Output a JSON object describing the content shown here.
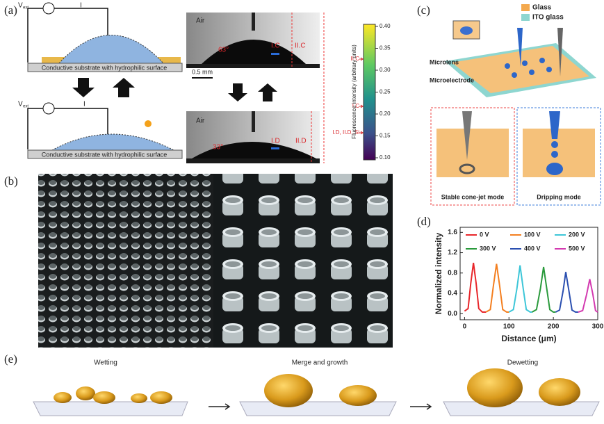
{
  "panel_labels": [
    "(a)",
    "(b)",
    "(c)",
    "(d)",
    "(e)"
  ],
  "panel_a": {
    "supply": "V",
    "supply_sub": "ext",
    "current": "I",
    "substrate": "Conductive substrate with hydrophilic surface",
    "medium": "Air",
    "angle_top": "63°",
    "angle_bottom": "33°",
    "marker_ic": "I.C",
    "marker_iic": "II.C",
    "marker_id": "I.D",
    "marker_iid": "II.D",
    "scale_bar": "0.5 mm",
    "colorbar": {
      "ticks": [
        "0.40",
        "0.35",
        "0.30",
        "0.25",
        "0.20",
        "0.15",
        "0.10"
      ],
      "title": "Fluorescence intensity (arbitrary units)",
      "annotations": [
        "II.C",
        "I.C",
        "I.D, II.D, Si"
      ]
    }
  },
  "panel_c": {
    "legend": [
      "Glass",
      "ITO glass"
    ],
    "labels": [
      "Microlens",
      "Microelectrode"
    ],
    "modes": [
      "Stable cone-jet mode",
      "Dripping mode"
    ]
  },
  "panel_e": {
    "stages": [
      "Wetting",
      "Merge and growth",
      "Dewetting"
    ]
  },
  "chart_data": {
    "type": "line",
    "xlabel": "Distance (μm)",
    "ylabel": "Normalized intensity",
    "xlim": [
      -10,
      300
    ],
    "ylim": [
      -0.12,
      1.7
    ],
    "xticks": [
      0,
      100,
      200,
      300
    ],
    "yticks": [
      {
        "value": 0,
        "label": "0.0"
      },
      0.4,
      0.8,
      1.2,
      1.6
    ],
    "series": [
      {
        "name": "0 V",
        "color": "#e8262a",
        "x": [
          0,
          8,
          14,
          20,
          26,
          32,
          40,
          48
        ],
        "values": [
          0.05,
          0.1,
          0.6,
          1.0,
          0.6,
          0.1,
          0.03,
          0.03
        ]
      },
      {
        "name": "100 V",
        "color": "#f47f20",
        "x": [
          48,
          58,
          65,
          72,
          79,
          86,
          95,
          100
        ],
        "values": [
          0.03,
          0.08,
          0.55,
          0.98,
          0.55,
          0.08,
          0.03,
          0.03
        ]
      },
      {
        "name": "200 V",
        "color": "#3dc6d8",
        "x": [
          100,
          110,
          118,
          125,
          132,
          139,
          148,
          152
        ],
        "values": [
          0.03,
          0.08,
          0.5,
          0.95,
          0.5,
          0.08,
          0.03,
          0.03
        ]
      },
      {
        "name": "300 V",
        "color": "#2a9a3c",
        "x": [
          152,
          162,
          171,
          178,
          185,
          192,
          200,
          205
        ],
        "values": [
          0.03,
          0.08,
          0.5,
          0.92,
          0.5,
          0.08,
          0.03,
          0.03
        ]
      },
      {
        "name": "400 V",
        "color": "#2a4fb0",
        "x": [
          205,
          214,
          222,
          228,
          235,
          242,
          250,
          256
        ],
        "values": [
          0.03,
          0.07,
          0.45,
          0.82,
          0.45,
          0.07,
          0.03,
          0.03
        ]
      },
      {
        "name": "500 V",
        "color": "#d33ab0",
        "x": [
          256,
          266,
          275,
          282,
          289,
          295,
          300
        ],
        "values": [
          0.03,
          0.06,
          0.38,
          0.68,
          0.38,
          0.06,
          0.03
        ]
      }
    ]
  }
}
